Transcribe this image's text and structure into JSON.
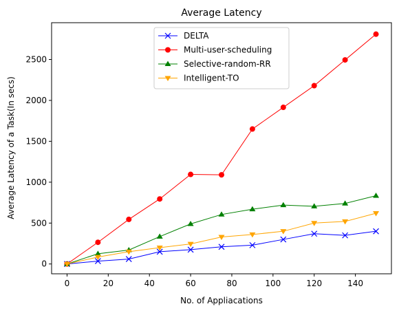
{
  "chart_data": {
    "type": "line",
    "title": "Average Latency",
    "xlabel": "No. of Appliacations",
    "ylabel": "Average Latency of a Task(In secs)",
    "xlim": [
      -7.5,
      157.5
    ],
    "ylim": [
      -120,
      2950
    ],
    "xticks": [
      0,
      20,
      40,
      60,
      80,
      100,
      120,
      140
    ],
    "yticks": [
      0,
      500,
      1000,
      1500,
      2000,
      2500
    ],
    "grid": false,
    "legend_position": "top-center",
    "x": [
      0,
      15,
      30,
      45,
      60,
      75,
      90,
      105,
      120,
      135,
      150
    ],
    "series": [
      {
        "name": "DELTA",
        "color": "#0000ff",
        "marker": "x",
        "values": [
          0,
          35,
          60,
          150,
          175,
          210,
          230,
          300,
          370,
          350,
          400
        ]
      },
      {
        "name": "Multi-user-scheduling",
        "color": "#ff0000",
        "marker": "circle",
        "values": [
          0,
          265,
          545,
          795,
          1095,
          1090,
          1650,
          1915,
          2180,
          2495,
          2810
        ]
      },
      {
        "name": "Selective-random-RR",
        "color": "#008000",
        "marker": "triangle-up",
        "values": [
          0,
          125,
          170,
          335,
          490,
          605,
          670,
          720,
          705,
          740,
          835
        ]
      },
      {
        "name": "Intelligent-TO",
        "color": "#ffa500",
        "marker": "triangle-down",
        "values": [
          0,
          85,
          150,
          200,
          245,
          330,
          360,
          400,
          500,
          520,
          620
        ]
      }
    ]
  }
}
